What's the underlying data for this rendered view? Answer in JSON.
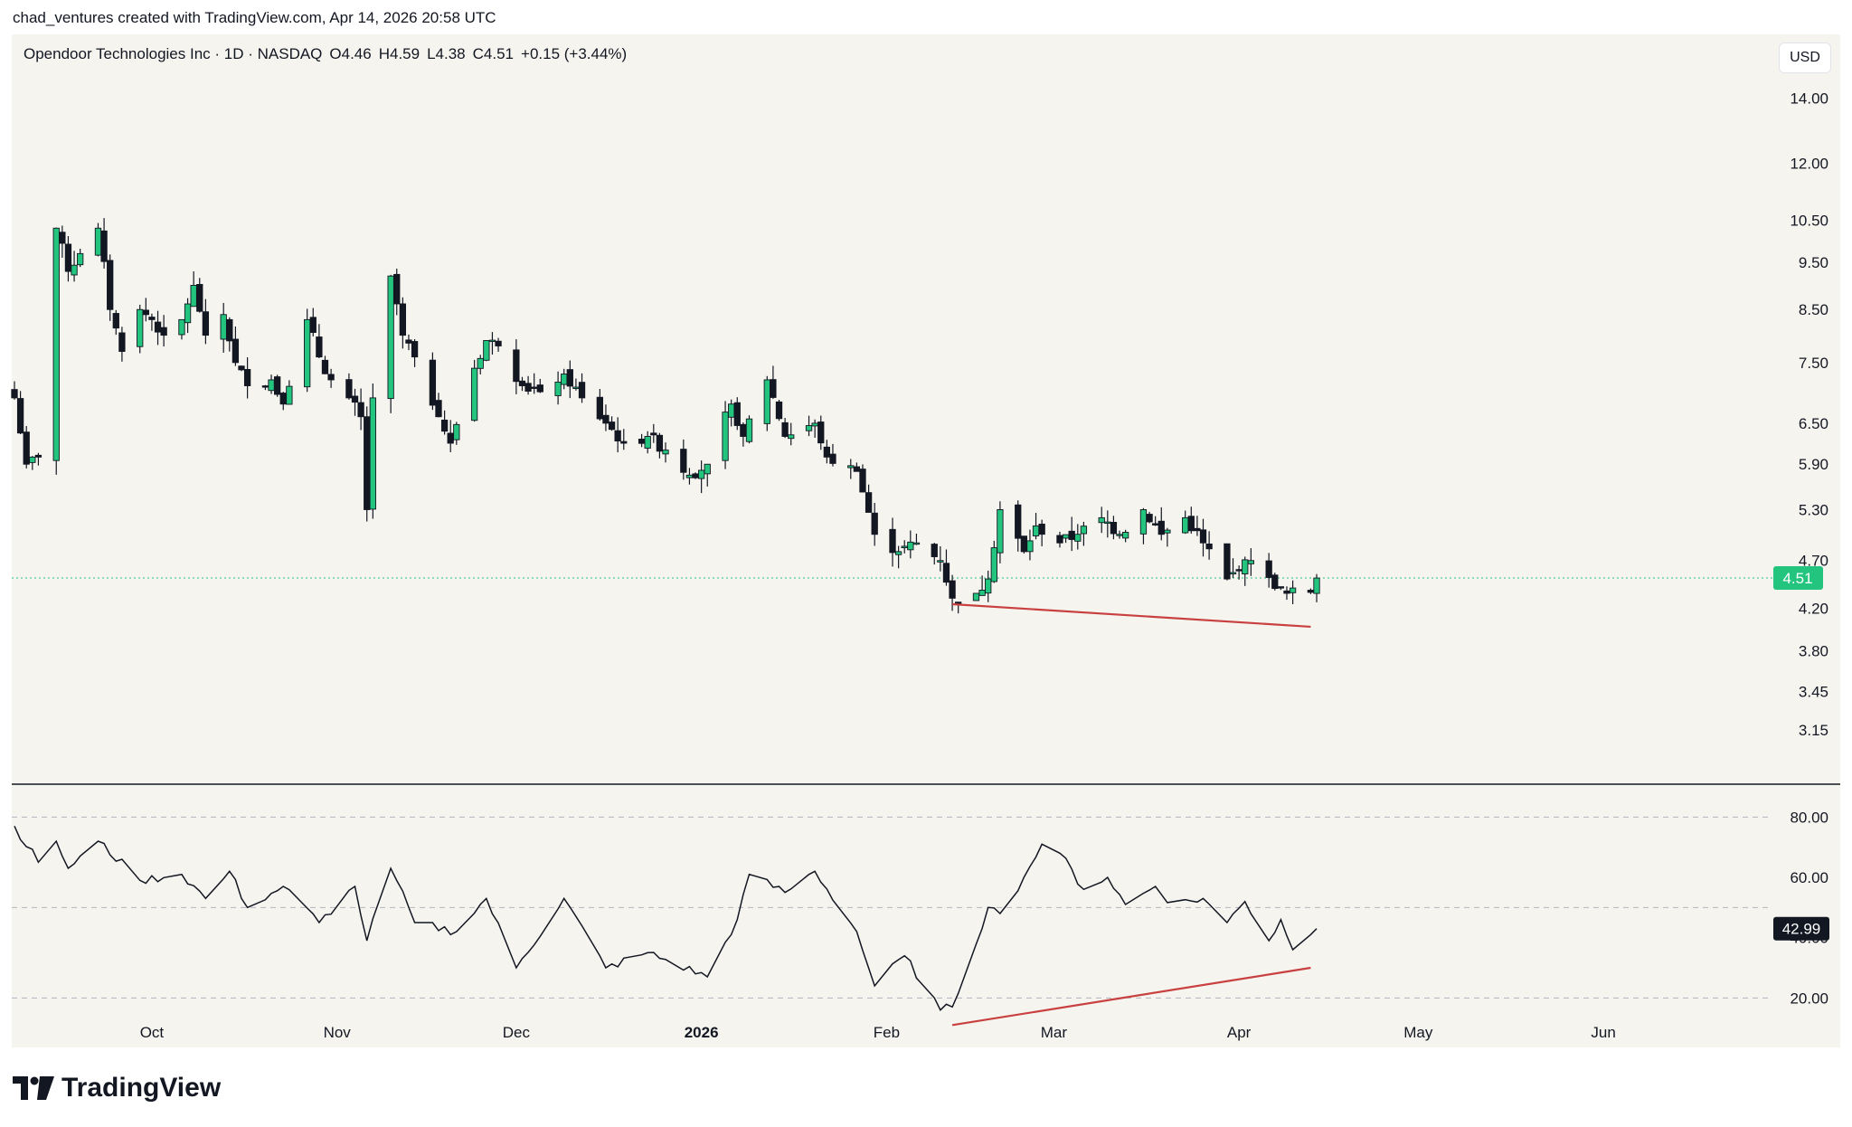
{
  "credit": "chad_ventures created with TradingView.com, Apr 14, 2026 20:58 UTC",
  "legend": {
    "title": "Opendoor Technologies Inc · 1D · NASDAQ",
    "open": "O4.46",
    "high": "H4.59",
    "low": "L4.38",
    "close": "C4.51",
    "change": "+0.15 (+3.44%)"
  },
  "currency": "USD",
  "last_price": "4.51",
  "last_rsi": "42.99",
  "brand": "TradingView",
  "colors": {
    "up": "#22c47e",
    "down": "#131722",
    "trendline": "#c8403f",
    "price_line": "#22c47e",
    "background": "#f6f4ef"
  },
  "chart_data": [
    {
      "type": "candlestick",
      "scale": "log",
      "ylim": [
        3.0,
        15.2
      ],
      "yticks": [
        "14.00",
        "12.00",
        "10.50",
        "9.50",
        "8.50",
        "7.50",
        "6.50",
        "5.90",
        "5.30",
        "4.70",
        "4.20",
        "3.80",
        "3.45",
        "3.15"
      ],
      "xticks": [
        {
          "label": "Oct",
          "date": "2025-10-01",
          "bold": false
        },
        {
          "label": "Nov",
          "date": "2025-11-01",
          "bold": false
        },
        {
          "label": "Dec",
          "date": "2025-12-01",
          "bold": false
        },
        {
          "label": "2026",
          "date": "2026-01-01",
          "bold": true
        },
        {
          "label": "Feb",
          "date": "2026-02-01",
          "bold": false
        },
        {
          "label": "Mar",
          "date": "2026-03-01",
          "bold": false
        },
        {
          "label": "Apr",
          "date": "2026-04-01",
          "bold": false
        },
        {
          "label": "May",
          "date": "2026-05-01",
          "bold": false
        },
        {
          "label": "Jun",
          "date": "2026-06-01",
          "bold": false
        }
      ],
      "x_start": "2025-09-08",
      "x_end": "2026-06-24",
      "anchor_closes": [
        [
          "2025-09-08",
          6.9
        ],
        [
          "2025-09-10",
          5.9
        ],
        [
          "2025-09-12",
          6.0
        ],
        [
          "2025-09-15",
          10.3
        ],
        [
          "2025-09-17",
          9.3
        ],
        [
          "2025-09-19",
          9.7
        ],
        [
          "2025-09-22",
          10.3
        ],
        [
          "2025-09-24",
          8.5
        ],
        [
          "2025-09-26",
          7.7
        ],
        [
          "2025-09-29",
          8.5
        ],
        [
          "2025-10-01",
          8.3
        ],
        [
          "2025-10-03",
          8.0
        ],
        [
          "2025-10-06",
          8.3
        ],
        [
          "2025-10-08",
          9.0
        ],
        [
          "2025-10-10",
          8.0
        ],
        [
          "2025-10-13",
          8.4
        ],
        [
          "2025-10-15",
          7.5
        ],
        [
          "2025-10-17",
          7.1
        ],
        [
          "2025-10-21",
          7.2
        ],
        [
          "2025-10-23",
          6.8
        ],
        [
          "2025-10-27",
          8.3
        ],
        [
          "2025-10-29",
          7.6
        ],
        [
          "2025-10-31",
          7.2
        ],
        [
          "2025-11-03",
          6.9
        ],
        [
          "2025-11-05",
          6.6
        ],
        [
          "2025-11-06",
          5.3
        ],
        [
          "2025-11-07",
          6.9
        ],
        [
          "2025-11-10",
          9.2
        ],
        [
          "2025-11-12",
          8.0
        ],
        [
          "2025-11-14",
          7.6
        ],
        [
          "2025-11-18",
          6.6
        ],
        [
          "2025-11-20",
          6.2
        ],
        [
          "2025-11-24",
          7.4
        ],
        [
          "2025-11-26",
          7.9
        ],
        [
          "2025-11-28",
          7.8
        ],
        [
          "2025-12-02",
          7.1
        ],
        [
          "2025-12-05",
          7.0
        ],
        [
          "2025-12-09",
          7.3
        ],
        [
          "2025-12-12",
          6.9
        ],
        [
          "2025-12-16",
          6.5
        ],
        [
          "2025-12-19",
          6.2
        ],
        [
          "2025-12-23",
          6.3
        ],
        [
          "2025-12-26",
          6.1
        ],
        [
          "2025-12-30",
          5.75
        ],
        [
          "2026-01-02",
          5.9
        ],
        [
          "2026-01-06",
          6.8
        ],
        [
          "2026-01-08",
          6.3
        ],
        [
          "2026-01-12",
          7.2
        ],
        [
          "2026-01-15",
          6.3
        ],
        [
          "2026-01-20",
          6.5
        ],
        [
          "2026-01-22",
          6.0
        ],
        [
          "2026-01-27",
          5.8
        ],
        [
          "2026-01-30",
          5.0
        ],
        [
          "2026-02-03",
          4.8
        ],
        [
          "2026-02-06",
          4.9
        ],
        [
          "2026-02-10",
          4.7
        ],
        [
          "2026-02-12",
          4.3
        ],
        [
          "2026-02-16",
          4.35
        ],
        [
          "2026-02-18",
          4.5
        ],
        [
          "2026-02-20",
          5.3
        ],
        [
          "2026-02-24",
          4.8
        ],
        [
          "2026-02-26",
          5.1
        ],
        [
          "2026-03-02",
          4.9
        ],
        [
          "2026-03-05",
          5.0
        ],
        [
          "2026-03-09",
          5.2
        ],
        [
          "2026-03-12",
          5.0
        ],
        [
          "2026-03-16",
          5.3
        ],
        [
          "2026-03-19",
          5.0
        ],
        [
          "2026-03-23",
          5.2
        ],
        [
          "2026-03-26",
          4.9
        ],
        [
          "2026-03-30",
          4.5
        ],
        [
          "2026-04-01",
          4.6
        ],
        [
          "2026-04-03",
          4.7
        ],
        [
          "2026-04-07",
          4.4
        ],
        [
          "2026-04-09",
          4.35
        ],
        [
          "2026-04-13",
          4.36
        ],
        [
          "2026-04-14",
          4.51
        ]
      ],
      "trendline": {
        "from": [
          "2026-02-12",
          4.24
        ],
        "to": [
          "2026-04-13",
          4.02
        ]
      },
      "price_line": 4.51
    },
    {
      "type": "line",
      "ylim": [
        12,
        90
      ],
      "yticks": [
        "80.00",
        "60.00",
        "40.00",
        "20.00"
      ],
      "dashed_levels": [
        80,
        50,
        20
      ],
      "anchors": [
        [
          "2025-09-08",
          77
        ],
        [
          "2025-09-12",
          65
        ],
        [
          "2025-09-15",
          72
        ],
        [
          "2025-09-17",
          63
        ],
        [
          "2025-09-22",
          72
        ],
        [
          "2025-09-29",
          59
        ],
        [
          "2025-10-06",
          61
        ],
        [
          "2025-10-10",
          53
        ],
        [
          "2025-10-14",
          62
        ],
        [
          "2025-10-17",
          50
        ],
        [
          "2025-10-23",
          57
        ],
        [
          "2025-10-29",
          45
        ],
        [
          "2025-11-04",
          57
        ],
        [
          "2025-11-06",
          39
        ],
        [
          "2025-11-10",
          63
        ],
        [
          "2025-11-14",
          45
        ],
        [
          "2025-11-21",
          42
        ],
        [
          "2025-11-26",
          53
        ],
        [
          "2025-12-01",
          30
        ],
        [
          "2025-12-09",
          53
        ],
        [
          "2025-12-16",
          30
        ],
        [
          "2025-12-23",
          35
        ],
        [
          "2026-01-02",
          27
        ],
        [
          "2026-01-07",
          46
        ],
        [
          "2026-01-09",
          61
        ],
        [
          "2026-01-15",
          55
        ],
        [
          "2026-01-20",
          62
        ],
        [
          "2026-01-27",
          42
        ],
        [
          "2026-01-30",
          24
        ],
        [
          "2026-02-04",
          34
        ],
        [
          "2026-02-10",
          16
        ],
        [
          "2026-02-12",
          17
        ],
        [
          "2026-02-18",
          50
        ],
        [
          "2026-02-20",
          48
        ],
        [
          "2026-02-24",
          60
        ],
        [
          "2026-02-27",
          71
        ],
        [
          "2026-03-02",
          68
        ],
        [
          "2026-03-06",
          56
        ],
        [
          "2026-03-10",
          60
        ],
        [
          "2026-03-13",
          51
        ],
        [
          "2026-03-18",
          57
        ],
        [
          "2026-03-21",
          51
        ],
        [
          "2026-03-26",
          53
        ],
        [
          "2026-03-30",
          45
        ],
        [
          "2026-04-02",
          52
        ],
        [
          "2026-04-06",
          39
        ],
        [
          "2026-04-08",
          46
        ],
        [
          "2026-04-10",
          36
        ],
        [
          "2026-04-13",
          41
        ],
        [
          "2026-04-14",
          42.99
        ]
      ],
      "trendline": {
        "from": [
          "2026-02-12",
          11
        ],
        "to": [
          "2026-04-13",
          30
        ]
      }
    }
  ]
}
